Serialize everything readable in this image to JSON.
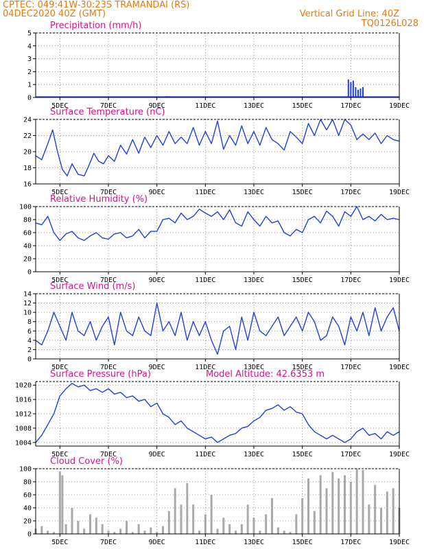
{
  "header": {
    "line1": "CPTEC:  049:41W-30:23S  TRAMANDAI (RS)",
    "line2": "04DEC2020 40Z (GMT)",
    "grid_info": "Vertical Grid Line: 40Z",
    "code": "TQ0126L028"
  },
  "colors": {
    "line": "#1f3fdf",
    "bar": "#a9a9a9",
    "title": "#d4148a",
    "header": "#e07b12"
  },
  "x_axis": {
    "start_day": 4.0,
    "end_day": 19.0,
    "tick_days": [
      5,
      7,
      9,
      11,
      13,
      15,
      17,
      19
    ],
    "tick_labels": [
      "5DEC",
      "7DEC",
      "9DEC",
      "11DEC",
      "13DEC",
      "15DEC",
      "17DEC",
      "19DEC"
    ]
  },
  "chart_data": [
    {
      "type": "bar",
      "title": "Precipitation (mm/h)",
      "ylim": [
        0,
        5
      ],
      "yticks": [
        0,
        1,
        2,
        3,
        4,
        5
      ],
      "grid": true,
      "x": [
        9.4,
        9.5,
        9.6,
        16.9,
        17.0,
        17.1,
        17.2,
        17.3,
        17.4,
        17.5
      ],
      "values": [
        0.1,
        0.1,
        0.05,
        1.4,
        1.2,
        1.3,
        0.8,
        0.6,
        0.7,
        0.8
      ]
    },
    {
      "type": "line",
      "title": "Surface Temperature (nC)",
      "ylim": [
        16,
        24
      ],
      "yticks": [
        16,
        18,
        20,
        22,
        24
      ],
      "grid": true,
      "x": [
        4.0,
        4.25,
        4.5,
        4.7,
        4.9,
        5.1,
        5.3,
        5.5,
        5.75,
        6.0,
        6.2,
        6.4,
        6.6,
        6.8,
        7.0,
        7.25,
        7.5,
        7.75,
        8.0,
        8.25,
        8.5,
        8.75,
        9.0,
        9.25,
        9.5,
        9.75,
        10.0,
        10.25,
        10.5,
        10.75,
        11.0,
        11.25,
        11.5,
        11.75,
        12.0,
        12.25,
        12.5,
        12.75,
        13.0,
        13.25,
        13.5,
        13.75,
        14.0,
        14.25,
        14.5,
        14.75,
        15.0,
        15.25,
        15.5,
        15.75,
        16.0,
        16.25,
        16.5,
        16.75,
        17.0,
        17.25,
        17.5,
        17.75,
        18.0,
        18.25,
        18.5,
        18.75,
        19.0
      ],
      "values": [
        19.5,
        19.0,
        21.0,
        22.7,
        20.0,
        17.8,
        17.0,
        18.5,
        17.2,
        17.0,
        18.3,
        19.8,
        18.8,
        18.5,
        19.5,
        18.8,
        20.8,
        19.7,
        21.5,
        19.8,
        21.8,
        20.5,
        22.0,
        20.8,
        22.5,
        21.0,
        21.8,
        21.0,
        23.0,
        20.8,
        22.5,
        21.0,
        23.8,
        20.3,
        22.0,
        20.8,
        23.2,
        21.0,
        22.5,
        20.8,
        23.0,
        21.5,
        21.0,
        20.2,
        22.5,
        21.8,
        21.0,
        23.5,
        22.0,
        24.0,
        22.7,
        24.0,
        22.0,
        24.0,
        23.3,
        21.5,
        22.2,
        21.5,
        22.3,
        21.0,
        22.0,
        21.5,
        21.3
      ]
    },
    {
      "type": "line",
      "title": "Relative Humidity (%)",
      "ylim": [
        0,
        100
      ],
      "yticks": [
        0,
        20,
        40,
        60,
        80,
        100
      ],
      "grid": true,
      "x": [
        4.0,
        4.25,
        4.5,
        4.75,
        5.0,
        5.25,
        5.5,
        5.75,
        6.0,
        6.25,
        6.5,
        6.75,
        7.0,
        7.25,
        7.5,
        7.75,
        8.0,
        8.25,
        8.5,
        8.75,
        9.0,
        9.25,
        9.5,
        9.75,
        10.0,
        10.25,
        10.5,
        10.75,
        11.0,
        11.25,
        11.5,
        11.75,
        12.0,
        12.25,
        12.5,
        12.75,
        13.0,
        13.25,
        13.5,
        13.75,
        14.0,
        14.25,
        14.5,
        14.75,
        15.0,
        15.25,
        15.5,
        15.75,
        16.0,
        16.25,
        16.5,
        16.75,
        17.0,
        17.25,
        17.5,
        17.75,
        18.0,
        18.25,
        18.5,
        18.75,
        19.0
      ],
      "values": [
        75,
        72,
        85,
        60,
        48,
        58,
        62,
        52,
        48,
        55,
        60,
        52,
        50,
        58,
        60,
        52,
        55,
        65,
        52,
        62,
        62,
        80,
        82,
        75,
        90,
        80,
        85,
        96,
        90,
        85,
        92,
        80,
        95,
        75,
        70,
        92,
        80,
        70,
        85,
        75,
        78,
        60,
        55,
        65,
        60,
        80,
        85,
        75,
        93,
        85,
        70,
        92,
        85,
        100,
        80,
        85,
        78,
        88,
        80,
        82,
        80
      ]
    },
    {
      "type": "line",
      "title": "Surface Wind (m/s)",
      "ylim": [
        0,
        14
      ],
      "yticks": [
        0,
        2,
        4,
        6,
        8,
        10,
        12,
        14
      ],
      "grid": true,
      "x": [
        4.0,
        4.25,
        4.5,
        4.75,
        5.0,
        5.25,
        5.5,
        5.75,
        6.0,
        6.25,
        6.5,
        6.75,
        7.0,
        7.25,
        7.5,
        7.75,
        8.0,
        8.25,
        8.5,
        8.75,
        9.0,
        9.25,
        9.5,
        9.75,
        10.0,
        10.25,
        10.5,
        10.75,
        11.0,
        11.25,
        11.5,
        11.75,
        12.0,
        12.25,
        12.5,
        12.75,
        13.0,
        13.25,
        13.5,
        13.75,
        14.0,
        14.25,
        14.5,
        14.75,
        15.0,
        15.25,
        15.5,
        15.75,
        16.0,
        16.25,
        16.5,
        16.75,
        17.0,
        17.25,
        17.5,
        17.75,
        18.0,
        18.25,
        18.5,
        18.75,
        19.0
      ],
      "values": [
        4,
        3,
        6,
        10,
        7,
        4,
        10,
        6,
        5,
        8,
        4,
        7,
        9,
        3,
        10,
        6,
        5,
        9,
        6,
        5,
        12,
        6,
        8,
        5,
        10,
        4,
        8,
        5,
        8,
        4,
        1,
        6,
        7,
        2,
        9,
        4,
        10,
        6,
        5,
        7,
        9,
        5,
        7,
        9,
        6,
        10,
        8,
        4,
        5,
        9,
        7,
        3,
        9,
        6,
        10,
        5,
        11,
        6,
        9,
        11,
        6
      ]
    },
    {
      "type": "line",
      "title": "Surface Pressure (hPa)",
      "annotation": "Model Altitude: 42.6353 m",
      "ylim": [
        1003,
        1021
      ],
      "yticks": [
        1004,
        1008,
        1012,
        1016,
        1020
      ],
      "grid": true,
      "x": [
        4.0,
        4.25,
        4.5,
        4.75,
        5.0,
        5.25,
        5.5,
        5.75,
        6.0,
        6.25,
        6.5,
        6.75,
        7.0,
        7.25,
        7.5,
        7.75,
        8.0,
        8.25,
        8.5,
        8.75,
        9.0,
        9.25,
        9.5,
        9.75,
        10.0,
        10.25,
        10.5,
        10.75,
        11.0,
        11.25,
        11.5,
        11.75,
        12.0,
        12.25,
        12.5,
        12.75,
        13.0,
        13.25,
        13.5,
        13.75,
        14.0,
        14.25,
        14.5,
        14.75,
        15.0,
        15.25,
        15.5,
        15.75,
        16.0,
        16.25,
        16.5,
        16.75,
        17.0,
        17.25,
        17.5,
        17.75,
        18.0,
        18.25,
        18.5,
        18.75,
        19.0
      ],
      "values": [
        1004,
        1006,
        1009,
        1012,
        1017,
        1019,
        1020.5,
        1019.5,
        1020,
        1018.5,
        1019,
        1018,
        1019,
        1017.5,
        1018,
        1016.5,
        1017,
        1015.5,
        1016,
        1014,
        1015,
        1012,
        1011,
        1009,
        1010,
        1008,
        1007,
        1006,
        1005,
        1005.5,
        1004,
        1005,
        1006,
        1006.5,
        1008,
        1008.5,
        1010,
        1011,
        1013,
        1013.5,
        1014.5,
        1013,
        1014,
        1012.5,
        1012,
        1009,
        1007,
        1006,
        1005,
        1006,
        1005,
        1004,
        1005,
        1007,
        1008,
        1006,
        1006.5,
        1005,
        1007,
        1006,
        1007
      ]
    },
    {
      "type": "area",
      "title": "Cloud Cover (%)",
      "ylim": [
        0,
        100
      ],
      "yticks": [
        0,
        20,
        40,
        60,
        80,
        100
      ],
      "grid": true,
      "x": [
        4.0,
        4.25,
        4.5,
        4.75,
        5.0,
        5.1,
        5.25,
        5.5,
        5.75,
        6.0,
        6.25,
        6.5,
        6.75,
        7.0,
        7.25,
        7.5,
        7.75,
        8.0,
        8.25,
        8.5,
        8.75,
        9.0,
        9.25,
        9.5,
        9.75,
        10.0,
        10.25,
        10.5,
        10.75,
        11.0,
        11.25,
        11.5,
        11.75,
        12.0,
        12.25,
        12.5,
        12.75,
        13.0,
        13.25,
        13.5,
        13.75,
        14.0,
        14.25,
        14.5,
        14.75,
        15.0,
        15.25,
        15.5,
        15.75,
        16.0,
        16.25,
        16.5,
        16.75,
        17.0,
        17.25,
        17.5,
        17.75,
        18.0,
        18.25,
        18.5,
        18.75,
        19.0
      ],
      "values": [
        8,
        12,
        5,
        3,
        96,
        90,
        15,
        40,
        20,
        8,
        30,
        25,
        15,
        5,
        3,
        8,
        20,
        3,
        15,
        5,
        10,
        3,
        12,
        35,
        70,
        45,
        78,
        45,
        5,
        30,
        60,
        8,
        25,
        15,
        5,
        15,
        45,
        25,
        5,
        30,
        55,
        10,
        5,
        3,
        30,
        55,
        85,
        35,
        90,
        70,
        95,
        85,
        90,
        80,
        100,
        98,
        45,
        75,
        40,
        65,
        70,
        40
      ]
    }
  ]
}
